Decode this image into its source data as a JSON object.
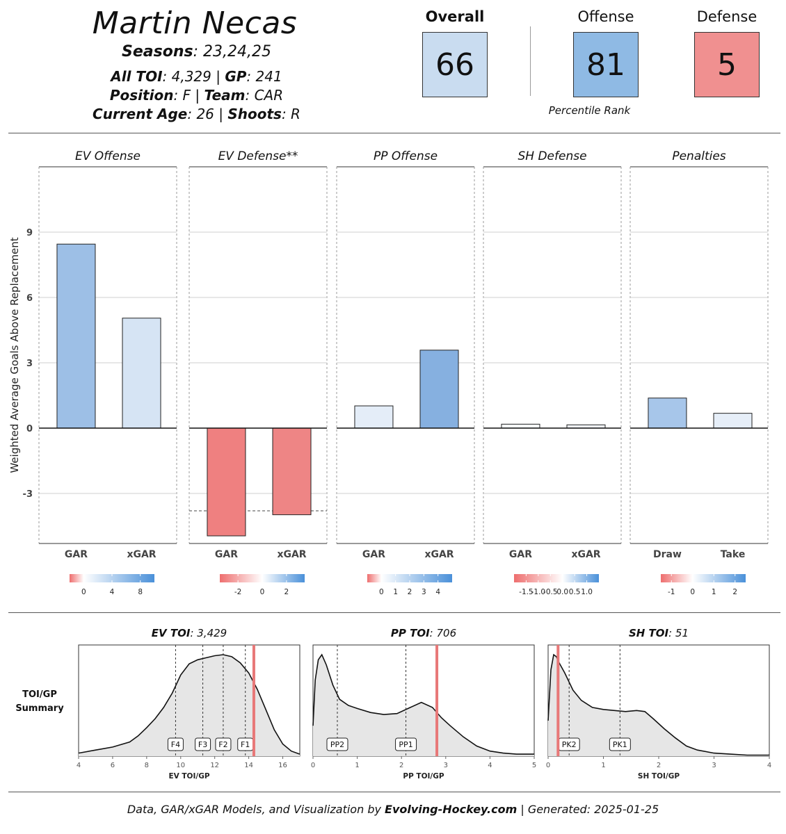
{
  "header": {
    "name": "Martin Necas",
    "seasons_label": "Seasons",
    "seasons_value": ": 23,24,25",
    "toi_label": "All TOI",
    "toi_value": ": 4,329 | ",
    "gp_label": "GP",
    "gp_value": ": 241",
    "position_label": "Position",
    "position_value": ": F | ",
    "team_label": "Team",
    "team_value": ": CAR",
    "age_label": "Current Age",
    "age_value": ": 26 | ",
    "shoots_label": "Shoots",
    "shoots_value": ": R"
  },
  "scores": {
    "overall_label": "Overall",
    "overall_value": "66",
    "offense_label": "Offense",
    "offense_value": "81",
    "defense_label": "Defense",
    "defense_value": "5",
    "percentile_label": "Percentile Rank",
    "colors": {
      "overall": "#c9dcf0",
      "offense": "#8fbae4",
      "defense": "#f09090"
    }
  },
  "chart_data": [
    {
      "type": "bar",
      "ylabel": "Weighted Average Goals Above Replacement",
      "ylim": [
        -5.3,
        12
      ],
      "yticks": [
        -3,
        0,
        3,
        6,
        9
      ],
      "panels": [
        {
          "title": "EV Offense",
          "categories": [
            "GAR",
            "xGAR"
          ],
          "values": [
            8.45,
            5.05
          ],
          "colors": [
            "#9dbfe6",
            "#d6e4f4"
          ],
          "reference": null,
          "legend": {
            "ticks": [
              "0",
              "4",
              "8"
            ],
            "min": -2,
            "max": 10,
            "tick_values": [
              0,
              4,
              8
            ]
          }
        },
        {
          "title": "EV Defense**",
          "categories": [
            "GAR",
            "xGAR"
          ],
          "values": [
            -4.95,
            -3.98
          ],
          "colors": [
            "#ef8080",
            "#ee8585"
          ],
          "reference": -3.8,
          "legend": {
            "ticks": [
              "-2",
              "0",
              "2"
            ],
            "min": -3.5,
            "max": 3.5,
            "tick_values": [
              -2,
              0,
              2
            ]
          }
        },
        {
          "title": "PP Offense",
          "categories": [
            "GAR",
            "xGAR"
          ],
          "values": [
            1.02,
            3.58
          ],
          "colors": [
            "#e4edf8",
            "#86b0e0"
          ],
          "reference": null,
          "legend": {
            "ticks": [
              "0",
              "1",
              "2",
              "3",
              "4"
            ],
            "min": -1,
            "max": 5,
            "tick_values": [
              0,
              1,
              2,
              3,
              4
            ]
          }
        },
        {
          "title": "SH Defense",
          "categories": [
            "GAR",
            "xGAR"
          ],
          "values": [
            0.18,
            0.15
          ],
          "colors": [
            "#f5f8fc",
            "#f0f5fb"
          ],
          "reference": null,
          "legend": {
            "ticks": [
              "-1.5",
              "-1.0",
              "-0.5",
              "0.0",
              "0.5",
              "1.0"
            ],
            "min": -2,
            "max": 1.5,
            "tick_values": [
              -1.5,
              -1.0,
              -0.5,
              0.0,
              0.5,
              1.0
            ]
          }
        },
        {
          "title": "Penalties",
          "categories": [
            "Draw",
            "Take"
          ],
          "values": [
            1.38,
            0.68
          ],
          "colors": [
            "#a7c6ea",
            "#e6eef8"
          ],
          "reference": null,
          "legend": {
            "ticks": [
              "-1",
              "0",
              "1",
              "2"
            ],
            "min": -1.5,
            "max": 2.5,
            "tick_values": [
              -1,
              0,
              1,
              2
            ]
          }
        }
      ]
    },
    {
      "type": "area",
      "row_label_line1": "TOI/GP",
      "row_label_line2": "Summary",
      "panels": [
        {
          "title_bold": "EV TOI",
          "title_value": ": 3,429",
          "xlabel": "EV TOI/GP",
          "xlim": [
            4,
            17
          ],
          "xticks": [
            4,
            6,
            8,
            10,
            12,
            14,
            16
          ],
          "player_value": 14.3,
          "markers": [
            {
              "label": "F4",
              "x": 9.7
            },
            {
              "label": "F3",
              "x": 11.3
            },
            {
              "label": "F2",
              "x": 12.5
            },
            {
              "label": "F1",
              "x": 13.8
            }
          ],
          "density_x": [
            4,
            5,
            6,
            7,
            7.5,
            8,
            8.5,
            9,
            9.5,
            10,
            10.5,
            11,
            11.5,
            12,
            12.5,
            13,
            13.5,
            14,
            14.5,
            15,
            15.5,
            16,
            16.5,
            17
          ],
          "density_y": [
            0.03,
            0.06,
            0.09,
            0.14,
            0.2,
            0.28,
            0.37,
            0.48,
            0.62,
            0.8,
            0.91,
            0.95,
            0.97,
            0.99,
            1.0,
            0.98,
            0.92,
            0.82,
            0.66,
            0.46,
            0.26,
            0.12,
            0.05,
            0.02
          ]
        },
        {
          "title_bold": "PP TOI",
          "title_value": ": 706",
          "xlabel": "PP TOI/GP",
          "xlim": [
            0,
            5
          ],
          "xticks": [
            0,
            1,
            2,
            3,
            4,
            5
          ],
          "player_value": 2.8,
          "markers": [
            {
              "label": "PP2",
              "x": 0.55
            },
            {
              "label": "PP1",
              "x": 2.1
            }
          ],
          "density_x": [
            0,
            0.05,
            0.12,
            0.2,
            0.3,
            0.45,
            0.6,
            0.8,
            1.0,
            1.3,
            1.6,
            1.9,
            2.2,
            2.45,
            2.7,
            2.9,
            3.1,
            3.4,
            3.7,
            4.0,
            4.3,
            4.6,
            5.0
          ],
          "density_y": [
            0.3,
            0.75,
            0.95,
            1.0,
            0.9,
            0.7,
            0.56,
            0.5,
            0.47,
            0.43,
            0.41,
            0.42,
            0.48,
            0.53,
            0.48,
            0.38,
            0.3,
            0.19,
            0.1,
            0.05,
            0.03,
            0.02,
            0.02
          ]
        },
        {
          "title_bold": "SH TOI",
          "title_value": ": 51",
          "xlabel": "SH TOI/GP",
          "xlim": [
            0,
            4
          ],
          "xticks": [
            0,
            1,
            2,
            3,
            4
          ],
          "player_value": 0.18,
          "markers": [
            {
              "label": "PK2",
              "x": 0.38
            },
            {
              "label": "PK1",
              "x": 1.3
            }
          ],
          "density_x": [
            0,
            0.05,
            0.1,
            0.15,
            0.2,
            0.3,
            0.45,
            0.6,
            0.8,
            1.0,
            1.2,
            1.4,
            1.6,
            1.75,
            1.9,
            2.1,
            2.3,
            2.5,
            2.7,
            3.0,
            3.3,
            3.6,
            4.0
          ],
          "density_y": [
            0.35,
            0.85,
            1.0,
            0.98,
            0.92,
            0.82,
            0.65,
            0.55,
            0.48,
            0.46,
            0.45,
            0.44,
            0.45,
            0.44,
            0.37,
            0.27,
            0.18,
            0.1,
            0.06,
            0.03,
            0.02,
            0.01,
            0.01
          ]
        }
      ]
    }
  ],
  "footer": {
    "prefix": "Data, GAR/xGAR Models, and Visualization by ",
    "brand": "Evolving-Hockey.com",
    "suffix": " | Generated: 2025-01-25"
  }
}
